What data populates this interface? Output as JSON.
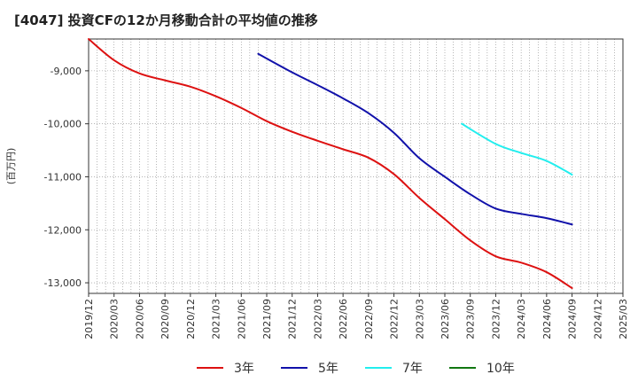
{
  "chart_data": {
    "type": "line",
    "title": "[4047]  投資CFの12か月移動合計の平均値の推移",
    "ylabel": "(百万円)",
    "xlabel": "",
    "ylim": [
      -13200,
      -8400
    ],
    "y_ticks": [
      -9000,
      -10000,
      -11000,
      -12000,
      -13000
    ],
    "y_tick_labels": [
      "-9,000",
      "-10,000",
      "-11,000",
      "-12,000",
      "-13,000"
    ],
    "x_range": [
      "2019/12",
      "2025/03"
    ],
    "x_tick_labels": [
      "2019/12",
      "2020/03",
      "2020/06",
      "2020/09",
      "2020/12",
      "2021/03",
      "2021/06",
      "2021/09",
      "2021/12",
      "2022/03",
      "2022/06",
      "2022/09",
      "2022/12",
      "2023/03",
      "2023/06",
      "2023/09",
      "2023/12",
      "2024/03",
      "2024/06",
      "2024/09",
      "2024/12",
      "2025/03"
    ],
    "grid": true,
    "legend_position": "bottom",
    "series": [
      {
        "name": "3年",
        "color": "#dd1111",
        "points": [
          [
            "2019/12",
            -8400
          ],
          [
            "2020/03",
            -8800
          ],
          [
            "2020/06",
            -9050
          ],
          [
            "2020/09",
            -9180
          ],
          [
            "2020/12",
            -9300
          ],
          [
            "2021/03",
            -9480
          ],
          [
            "2021/06",
            -9700
          ],
          [
            "2021/09",
            -9950
          ],
          [
            "2021/12",
            -10150
          ],
          [
            "2022/03",
            -10320
          ],
          [
            "2022/06",
            -10480
          ],
          [
            "2022/09",
            -10640
          ],
          [
            "2022/12",
            -10950
          ],
          [
            "2023/03",
            -11400
          ],
          [
            "2023/06",
            -11800
          ],
          [
            "2023/09",
            -12200
          ],
          [
            "2023/12",
            -12500
          ],
          [
            "2024/03",
            -12620
          ],
          [
            "2024/06",
            -12800
          ],
          [
            "2024/09",
            -13100
          ]
        ]
      },
      {
        "name": "5年",
        "color": "#1111aa",
        "points": [
          [
            "2021/08",
            -8680
          ],
          [
            "2021/12",
            -9030
          ],
          [
            "2022/03",
            -9270
          ],
          [
            "2022/06",
            -9520
          ],
          [
            "2022/09",
            -9800
          ],
          [
            "2022/12",
            -10170
          ],
          [
            "2023/03",
            -10650
          ],
          [
            "2023/06",
            -11000
          ],
          [
            "2023/09",
            -11330
          ],
          [
            "2023/12",
            -11600
          ],
          [
            "2024/03",
            -11700
          ],
          [
            "2024/06",
            -11780
          ],
          [
            "2024/09",
            -11900
          ]
        ]
      },
      {
        "name": "7年",
        "color": "#22eeee",
        "points": [
          [
            "2023/08",
            -10000
          ],
          [
            "2023/12",
            -10380
          ],
          [
            "2024/03",
            -10550
          ],
          [
            "2024/06",
            -10700
          ],
          [
            "2024/09",
            -10960
          ]
        ]
      },
      {
        "name": "10年",
        "color": "#117711",
        "points": []
      }
    ]
  }
}
